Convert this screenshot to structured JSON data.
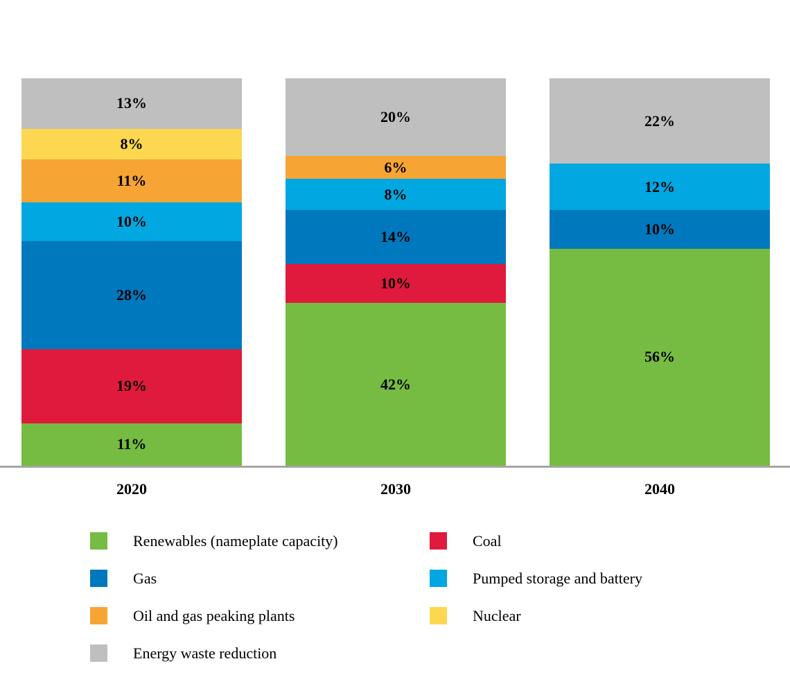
{
  "chart_data": {
    "type": "bar",
    "stacked": true,
    "percent_stacked": true,
    "title": "",
    "xlabel": "",
    "ylabel": "",
    "categories": [
      "2020",
      "2030",
      "2040"
    ],
    "series": [
      {
        "name": "Renewables (nameplate capacity)",
        "color": "#76BC43",
        "values": [
          11,
          42,
          56
        ]
      },
      {
        "name": "Coal",
        "color": "#E01A3C",
        "values": [
          19,
          10,
          0
        ]
      },
      {
        "name": "Gas",
        "color": "#0078BE",
        "values": [
          28,
          14,
          10
        ]
      },
      {
        "name": "Pumped storage and battery",
        "color": "#00A7E1",
        "values": [
          10,
          8,
          12
        ]
      },
      {
        "name": "Oil and gas peaking plants",
        "color": "#F6A434",
        "values": [
          11,
          6,
          0
        ]
      },
      {
        "name": "Nuclear",
        "color": "#FDD74F",
        "values": [
          8,
          0,
          0
        ]
      },
      {
        "name": "Energy waste reduction",
        "color": "#BFBFBF",
        "values": [
          13,
          20,
          22
        ]
      }
    ],
    "value_suffix": "%",
    "ylim": [
      0,
      100
    ],
    "grid": false,
    "axis_line_color": "#A6A6A6",
    "label_color": "#000000",
    "legend_position": "bottom"
  },
  "legend": {
    "columns": [
      [
        "Renewables (nameplate capacity)",
        "Gas",
        "Oil and gas peaking plants",
        "Energy waste reduction"
      ],
      [
        "Coal",
        "Pumped storage and battery",
        "Nuclear"
      ]
    ]
  }
}
